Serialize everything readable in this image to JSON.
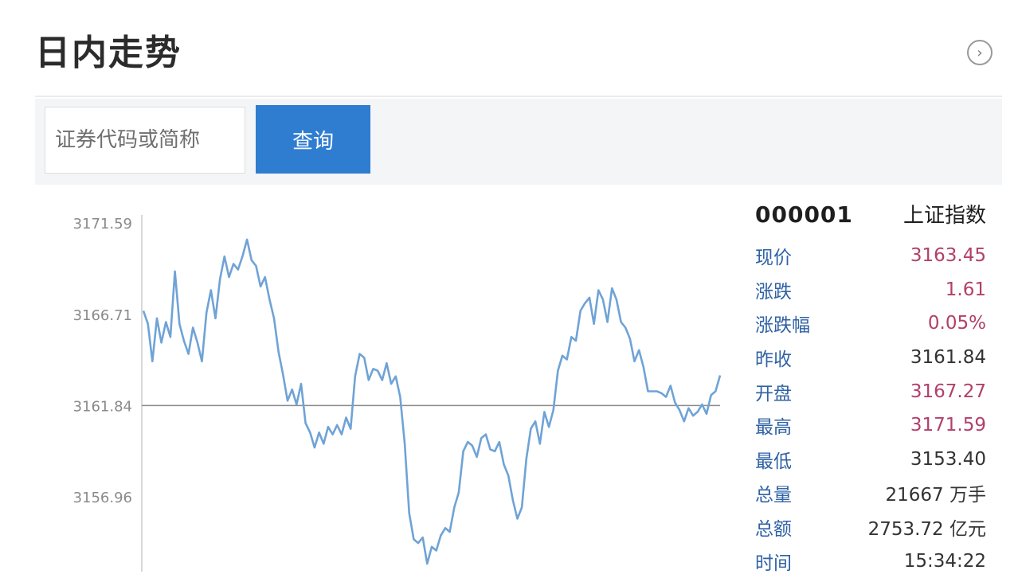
{
  "header": {
    "title": "日内走势",
    "more_icon": "chevron-right-circle-icon"
  },
  "search": {
    "placeholder": "证券代码或简称",
    "button_label": "查询"
  },
  "colors": {
    "line": "#6fa3d6",
    "baseline": "#8a8a8a",
    "up": "#b2406a",
    "label": "#2f62a5",
    "button": "#2f7dd1"
  },
  "chart_data": {
    "type": "line",
    "ylim": [
      3153.4,
      3171.59
    ],
    "yticks": [
      "3171.59",
      "3166.71",
      "3161.84",
      "3156.96"
    ],
    "ytick_values": [
      3171.59,
      3166.71,
      3161.84,
      3156.96
    ],
    "baseline": 3161.84,
    "series": [
      {
        "values": [
          3166.9,
          3166.2,
          3164.2,
          3166.5,
          3165.2,
          3166.3,
          3165.5,
          3169.0,
          3166.2,
          3165.3,
          3164.6,
          3166.0,
          3165.2,
          3164.2,
          3166.8,
          3168.0,
          3166.5,
          3168.6,
          3169.8,
          3168.7,
          3169.4,
          3169.1,
          3169.8,
          3170.7,
          3169.6,
          3169.3,
          3168.2,
          3168.7,
          3167.5,
          3166.5,
          3164.7,
          3163.5,
          3162.1,
          3162.7,
          3161.9,
          3163.0,
          3160.9,
          3160.4,
          3159.6,
          3160.4,
          3159.8,
          3160.7,
          3160.3,
          3160.8,
          3160.3,
          3161.2,
          3160.6,
          3163.4,
          3164.6,
          3164.4,
          3163.2,
          3163.8,
          3163.7,
          3163.2,
          3164.1,
          3163.0,
          3163.4,
          3162.3,
          3159.8,
          3156.1,
          3154.7,
          3154.5,
          3154.8,
          3153.4,
          3154.3,
          3154.1,
          3154.9,
          3155.3,
          3155.1,
          3156.4,
          3157.2,
          3159.4,
          3159.9,
          3159.7,
          3159.1,
          3160.1,
          3160.3,
          3159.5,
          3159.4,
          3159.9,
          3158.7,
          3158.1,
          3156.8,
          3155.8,
          3156.4,
          3159.0,
          3160.6,
          3161.0,
          3159.8,
          3161.5,
          3160.7,
          3161.6,
          3163.7,
          3164.5,
          3164.3,
          3165.5,
          3165.3,
          3166.9,
          3167.3,
          3167.6,
          3166.2,
          3168.0,
          3167.5,
          3166.3,
          3168.1,
          3167.5,
          3166.3,
          3166.0,
          3165.4,
          3164.2,
          3164.8,
          3163.9,
          3162.6,
          3162.6,
          3162.6,
          3162.5,
          3162.3,
          3162.9,
          3162.0,
          3161.6,
          3161.0,
          3161.7,
          3161.3,
          3161.5,
          3161.9,
          3161.4,
          3162.4,
          3162.6,
          3163.45
        ]
      }
    ]
  },
  "info": {
    "code": "000001",
    "name": "上证指数",
    "rows": [
      {
        "label": "现价",
        "value": "3163.45",
        "up": true
      },
      {
        "label": "涨跌",
        "value": "1.61",
        "up": true
      },
      {
        "label": "涨跌幅",
        "value": "0.05%",
        "up": true
      },
      {
        "label": "昨收",
        "value": "3161.84",
        "up": false
      },
      {
        "label": "开盘",
        "value": "3167.27",
        "up": true
      },
      {
        "label": "最高",
        "value": "3171.59",
        "up": true
      },
      {
        "label": "最低",
        "value": "3153.40",
        "up": false
      },
      {
        "label": "总量",
        "value": "21667 万手",
        "up": false
      },
      {
        "label": "总额",
        "value": "2753.72 亿元",
        "up": false
      },
      {
        "label": "时间",
        "value": "15:34:22",
        "up": false
      }
    ]
  }
}
